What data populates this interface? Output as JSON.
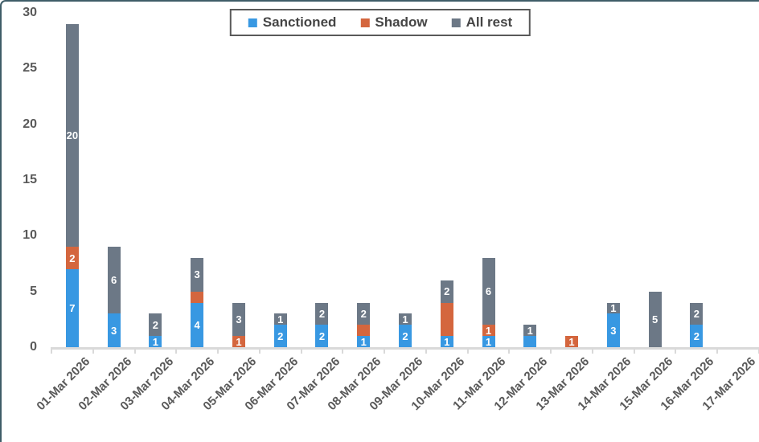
{
  "chart_data": {
    "type": "bar",
    "subtype": "stacked",
    "title": "",
    "xlabel": "",
    "ylabel": "",
    "categories": [
      "01-Mar 2026",
      "02-Mar 2026",
      "03-Mar 2026",
      "04-Mar 2026",
      "05-Mar 2026",
      "06-Mar 2026",
      "07-Mar 2026",
      "08-Mar 2026",
      "09-Mar 2026",
      "10-Mar 2026",
      "11-Mar 2026",
      "12-Mar 2026",
      "13-Mar 2026",
      "14-Mar 2026",
      "15-Mar 2026",
      "16-Mar 2026",
      "17-Mar 2026"
    ],
    "series": [
      {
        "name": "Sanctioned",
        "color": "#3898E2",
        "values": [
          7,
          3,
          1,
          4,
          0,
          2,
          2,
          1,
          2,
          1,
          1,
          1,
          0,
          3,
          0,
          2,
          0
        ],
        "labels": [
          "7",
          "3",
          "1",
          "4",
          "",
          "2",
          "2",
          "1",
          "2",
          "1",
          "1",
          "",
          "",
          "3",
          "",
          "2",
          ""
        ]
      },
      {
        "name": "Shadow",
        "color": "#D4663E",
        "values": [
          2,
          0,
          0,
          1,
          1,
          0,
          0,
          1,
          0,
          3,
          1,
          0,
          1,
          0,
          0,
          0,
          0
        ],
        "labels": [
          "2",
          "",
          "",
          "",
          "1",
          "",
          "",
          "",
          "",
          "",
          "1",
          "",
          "1",
          "",
          "",
          "",
          ""
        ]
      },
      {
        "name": "All rest",
        "color": "#6C7886",
        "values": [
          20,
          6,
          2,
          3,
          3,
          1,
          2,
          2,
          1,
          2,
          6,
          1,
          0,
          1,
          5,
          2,
          0
        ],
        "labels": [
          "20",
          "6",
          "2",
          "3",
          "3",
          "1",
          "2",
          "2",
          "1",
          "2",
          "6",
          "1",
          "",
          "1",
          "5",
          "2",
          ""
        ]
      }
    ],
    "totals": [
      29,
      9,
      3,
      8,
      4,
      3,
      4,
      4,
      3,
      6,
      8,
      2,
      1,
      4,
      5,
      4,
      0
    ],
    "y_axis": {
      "min": 0,
      "max": 30,
      "step": 5,
      "ticks": [
        "0",
        "5",
        "10",
        "15",
        "20",
        "25",
        "30"
      ]
    },
    "legend": {
      "position": "top-center",
      "entries": [
        "Sanctioned",
        "Shadow",
        "All rest"
      ]
    },
    "grid": false,
    "data_label_color": "#FFFFFF"
  },
  "colors": {
    "frame_border": "#3F5D68",
    "axis_text": "#595959",
    "axis_line": "#D9D9D9",
    "legend_border": "#595959",
    "legend_text": "#454545",
    "background": "#FFFFFF"
  }
}
